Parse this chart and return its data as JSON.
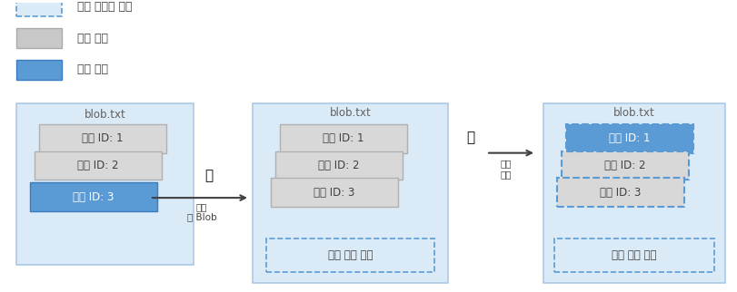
{
  "bg_color": "#f0f7ff",
  "box_bg_light_blue": "#daeaf7",
  "box_bg_white": "#ffffff",
  "box_gray": "#c8c8c8",
  "box_blue": "#5b9bd5",
  "box_dashed_fill": "#daeaf7",
  "dashed_border": "#5b9bd5",
  "text_color": "#404040",
  "title_color": "#606060",
  "arrow_color": "#404040",
  "panel1_title": "blob.txt",
  "panel2_title": "blob.txt",
  "panel3_title": "blob.txt",
  "ver_label_1": "버전 ID: 1",
  "ver_label_2": "버전 ID: 2",
  "ver_label_3": "버전 ID: 3",
  "no_current": "현재 버전 없음",
  "action1": "삭제\n이 Blob",
  "action2": "삭제\n버전",
  "legend": [
    {
      "label": "현재 버전",
      "color": "#5b9bd5",
      "style": "solid"
    },
    {
      "label": "이전 버전",
      "color": "#c8c8c8",
      "style": "solid"
    },
    {
      "label": "일시 삭제된 버전",
      "color": "#daeaf7",
      "style": "dashed"
    }
  ]
}
